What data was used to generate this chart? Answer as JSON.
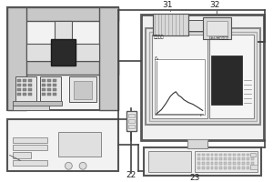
{
  "bg_color": "#ffffff",
  "border_color": "#555555",
  "light_gray": "#c8c8c8",
  "dark_gray": "#888888",
  "very_dark": "#1a1a1a",
  "medium_gray": "#aaaaaa",
  "label_31": "31",
  "label_32": "32",
  "label_22": "22",
  "label_23": "23",
  "text_loading": "加载曲线",
  "text_dscm": "DSCM数字系统",
  "fig_width": 3.0,
  "fig_height": 2.0,
  "dpi": 100
}
